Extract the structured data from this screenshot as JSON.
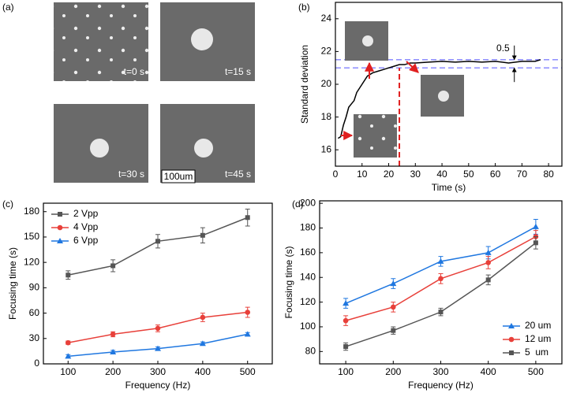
{
  "image_panel": {
    "label": "(a)",
    "captions": [
      "t=0 s",
      "t=15 s",
      "t=30 s",
      "t=45 s"
    ],
    "scale_bar": "100um"
  },
  "chart_data": [
    {
      "type": "line",
      "label": "(b)",
      "xlabel": "Time (s)",
      "ylabel": "Standard deviation",
      "xlim": [
        0,
        85
      ],
      "ylim": [
        15,
        25
      ],
      "xticks": [
        0,
        10,
        20,
        30,
        40,
        50,
        60,
        70,
        80
      ],
      "yticks": [
        16,
        18,
        20,
        22,
        24
      ],
      "x": [
        1,
        2,
        3,
        4,
        5,
        6,
        7,
        8,
        10,
        12,
        14,
        16,
        18,
        20,
        22,
        24,
        26,
        28,
        30,
        35,
        40,
        45,
        50,
        55,
        60,
        65,
        70,
        75,
        77
      ],
      "series": [
        {
          "color": "#000000",
          "values": [
            16.7,
            16.8,
            17.5,
            18.0,
            18.6,
            18.8,
            19.0,
            19.5,
            20.0,
            20.5,
            20.7,
            20.8,
            20.9,
            21.0,
            21.1,
            21.2,
            21.2,
            21.3,
            21.3,
            21.35,
            21.4,
            21.35,
            21.4,
            21.35,
            21.4,
            21.3,
            21.4,
            21.4,
            21.5
          ]
        }
      ],
      "hlines": [
        21.0,
        21.5
      ],
      "hline_color": "#8080ff",
      "vline": 24,
      "vline_color": "#e02020",
      "annotation": "0.5"
    },
    {
      "type": "line",
      "label": "(c)",
      "xlabel": "Frequency (Hz)",
      "ylabel": "Focusing time (s)",
      "xlim": [
        45,
        555
      ],
      "ylim": [
        0,
        190
      ],
      "xticks": [
        100,
        200,
        300,
        400,
        500
      ],
      "yticks": [
        0,
        30,
        60,
        90,
        120,
        150,
        180
      ],
      "x": [
        100,
        200,
        300,
        400,
        500
      ],
      "legend": "upper left",
      "series": [
        {
          "name": "2 Vpp",
          "color": "#555555",
          "marker": "square",
          "values": [
            105,
            116,
            145,
            152,
            173
          ],
          "errors": [
            5,
            7,
            8,
            9,
            10
          ]
        },
        {
          "name": "4 Vpp",
          "color": "#e8403a",
          "marker": "circle",
          "values": [
            25,
            35,
            42,
            55,
            61
          ],
          "errors": [
            2,
            3,
            4,
            5,
            6
          ]
        },
        {
          "name": "6 Vpp",
          "color": "#1f77e0",
          "marker": "triangle",
          "values": [
            9,
            14,
            18,
            24,
            35
          ],
          "errors": [
            2,
            2,
            2,
            2,
            2
          ]
        }
      ]
    },
    {
      "type": "line",
      "label": "(d)",
      "xlabel": "Frequency (Hz)",
      "ylabel": "Focusing time (s)",
      "xlim": [
        45,
        555
      ],
      "ylim": [
        70,
        202
      ],
      "xticks": [
        100,
        200,
        300,
        400,
        500
      ],
      "yticks": [
        80,
        100,
        120,
        140,
        160,
        180,
        200
      ],
      "x": [
        100,
        200,
        300,
        400,
        500
      ],
      "legend": "lower right",
      "series": [
        {
          "name": "20 um",
          "color": "#1f77e0",
          "marker": "triangle",
          "values": [
            119,
            135,
            153,
            160,
            181
          ],
          "errors": [
            4,
            4,
            4,
            5,
            6
          ]
        },
        {
          "name": "12 um",
          "color": "#e8403a",
          "marker": "circle",
          "values": [
            105,
            116,
            139,
            152,
            173
          ],
          "errors": [
            4,
            4,
            4,
            5,
            5
          ]
        },
        {
          "name": "5  um",
          "color": "#555555",
          "marker": "square",
          "values": [
            84,
            97,
            112,
            138,
            168
          ],
          "errors": [
            3,
            3,
            3,
            4,
            5
          ]
        }
      ]
    }
  ]
}
